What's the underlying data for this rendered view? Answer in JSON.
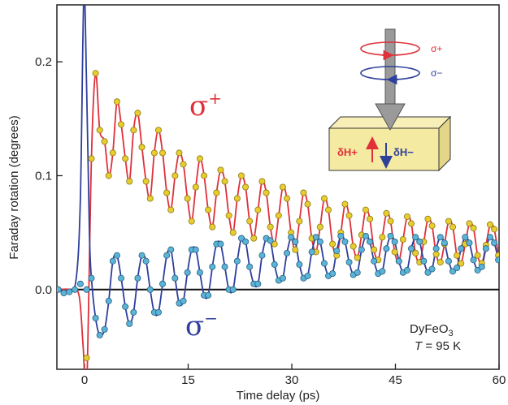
{
  "chart_data": {
    "type": "scatter",
    "title": "",
    "xlabel": "Time delay (ps)",
    "ylabel": "Faraday rotation (degrees)",
    "xlim": [
      -4,
      60
    ],
    "ylim": [
      -0.07,
      0.25
    ],
    "xticks": [
      0,
      15,
      30,
      45,
      60
    ],
    "xtick_labels": [
      "0",
      "15",
      "30",
      "45",
      "60"
    ],
    "yticks": [
      0.0,
      0.1,
      0.2
    ],
    "ytick_labels": [
      "0.0",
      "0.1",
      "0.2"
    ],
    "grid": false,
    "zero_line": true,
    "series": [
      {
        "name": "σ+",
        "label": "σ",
        "label_sup": "+",
        "line_color": "#e0303a",
        "marker_color": "#e8cc30",
        "x": [
          0.3,
          1.0,
          1.6,
          2.2,
          2.9,
          3.5,
          4.1,
          4.7,
          5.3,
          5.9,
          6.5,
          7.1,
          7.7,
          8.3,
          8.9,
          9.5,
          10.1,
          10.7,
          11.3,
          11.9,
          12.5,
          13.1,
          13.7,
          14.3,
          14.9,
          15.5,
          16.1,
          16.7,
          17.3,
          17.9,
          18.5,
          19.1,
          19.7,
          20.3,
          20.9,
          21.5,
          22.1,
          22.7,
          23.3,
          23.9,
          24.5,
          25.1,
          25.7,
          26.3,
          26.9,
          27.5,
          28.1,
          28.7,
          29.3,
          29.9,
          30.5,
          31.1,
          31.7,
          32.3,
          32.9,
          33.5,
          34.1,
          34.7,
          35.3,
          35.9,
          36.5,
          37.1,
          37.7,
          38.3,
          38.9,
          39.5,
          40.1,
          40.7,
          41.3,
          41.9,
          42.5,
          43.1,
          43.7,
          44.3,
          44.9,
          45.5,
          46.1,
          46.7,
          47.3,
          47.9,
          48.5,
          49.1,
          49.7,
          50.3,
          50.9,
          51.5,
          52.1,
          52.7,
          53.3,
          53.9,
          54.5,
          55.1,
          55.7,
          56.3,
          56.9,
          57.5,
          58.1,
          58.7,
          59.3,
          59.9
        ],
        "y": [
          -0.06,
          0.115,
          0.19,
          0.14,
          0.13,
          0.1,
          0.12,
          0.165,
          0.145,
          0.115,
          0.095,
          0.14,
          0.155,
          0.125,
          0.095,
          0.08,
          0.12,
          0.14,
          0.12,
          0.085,
          0.07,
          0.1,
          0.12,
          0.11,
          0.08,
          0.06,
          0.09,
          0.115,
          0.1,
          0.07,
          0.055,
          0.085,
          0.105,
          0.095,
          0.065,
          0.05,
          0.08,
          0.1,
          0.09,
          0.06,
          0.045,
          0.07,
          0.095,
          0.085,
          0.055,
          0.04,
          0.065,
          0.09,
          0.08,
          0.05,
          0.035,
          0.06,
          0.085,
          0.075,
          0.045,
          0.033,
          0.055,
          0.08,
          0.07,
          0.04,
          0.03,
          0.05,
          0.075,
          0.065,
          0.038,
          0.028,
          0.048,
          0.07,
          0.062,
          0.035,
          0.026,
          0.046,
          0.067,
          0.06,
          0.033,
          0.025,
          0.044,
          0.064,
          0.058,
          0.032,
          0.024,
          0.042,
          0.062,
          0.056,
          0.031,
          0.024,
          0.04,
          0.06,
          0.055,
          0.03,
          0.023,
          0.04,
          0.058,
          0.054,
          0.03,
          0.023,
          0.039,
          0.057,
          0.053,
          0.03
        ]
      },
      {
        "name": "σ−",
        "label": "σ",
        "label_sup": "−",
        "line_color": "#2e3f9c",
        "marker_color": "#59b4d8",
        "x": [
          -3.8,
          -3.0,
          -2.2,
          -1.4,
          -0.6,
          0.3,
          1.0,
          1.6,
          2.2,
          2.9,
          3.5,
          4.1,
          4.7,
          5.3,
          5.9,
          6.5,
          7.1,
          7.7,
          8.3,
          8.9,
          9.5,
          10.1,
          10.7,
          11.3,
          11.9,
          12.5,
          13.1,
          13.7,
          14.3,
          14.9,
          15.5,
          16.1,
          16.7,
          17.3,
          17.9,
          18.5,
          19.1,
          19.7,
          20.3,
          20.9,
          21.5,
          22.1,
          22.7,
          23.3,
          23.9,
          24.5,
          25.1,
          25.7,
          26.3,
          26.9,
          27.5,
          28.1,
          28.7,
          29.3,
          29.9,
          30.5,
          31.1,
          31.7,
          32.3,
          32.9,
          33.5,
          34.1,
          34.7,
          35.3,
          35.9,
          36.5,
          37.1,
          37.7,
          38.3,
          38.9,
          39.5,
          40.1,
          40.7,
          41.3,
          41.9,
          42.5,
          43.1,
          43.7,
          44.3,
          44.9,
          45.5,
          46.1,
          46.7,
          47.3,
          47.9,
          48.5,
          49.1,
          49.7,
          50.3,
          50.9,
          51.5,
          52.1,
          52.7,
          53.3,
          53.9,
          54.5,
          55.1,
          55.7,
          56.3,
          56.9,
          57.5,
          58.1,
          58.7,
          59.3,
          59.9
        ],
        "y": [
          0.0,
          -0.003,
          -0.002,
          0.0,
          0.005,
          0.0,
          0.01,
          -0.025,
          -0.04,
          -0.035,
          -0.01,
          0.025,
          0.03,
          0.01,
          -0.015,
          -0.03,
          -0.02,
          0.01,
          0.03,
          0.025,
          0.0,
          -0.02,
          -0.02,
          0.005,
          0.03,
          0.035,
          0.01,
          -0.012,
          -0.01,
          0.015,
          0.035,
          0.035,
          0.015,
          -0.005,
          -0.005,
          0.02,
          0.04,
          0.04,
          0.02,
          0.0,
          0.0,
          0.025,
          0.045,
          0.042,
          0.02,
          0.005,
          0.005,
          0.03,
          0.045,
          0.043,
          0.022,
          0.008,
          0.01,
          0.032,
          0.046,
          0.042,
          0.022,
          0.01,
          0.012,
          0.033,
          0.046,
          0.042,
          0.023,
          0.012,
          0.014,
          0.034,
          0.047,
          0.042,
          0.024,
          0.013,
          0.015,
          0.035,
          0.047,
          0.042,
          0.025,
          0.014,
          0.016,
          0.036,
          0.047,
          0.042,
          0.025,
          0.015,
          0.017,
          0.036,
          0.046,
          0.042,
          0.025,
          0.015,
          0.018,
          0.036,
          0.046,
          0.041,
          0.025,
          0.016,
          0.019,
          0.036,
          0.046,
          0.041,
          0.026,
          0.017,
          0.02,
          0.036,
          0.046,
          0.041,
          0.026
        ]
      }
    ],
    "annotations": {
      "sample_name": "DyFeO",
      "sample_sub": "3",
      "temperature_italic": "T",
      "temperature_rest": " = 95 K"
    },
    "inset": {
      "sigma_plus": "σ+",
      "sigma_minus": "σ−",
      "dh_plus": "δH+",
      "dh_minus": "δH−",
      "box_color": "#f4eaa2",
      "arrow_color": "#9a9a9a"
    }
  }
}
